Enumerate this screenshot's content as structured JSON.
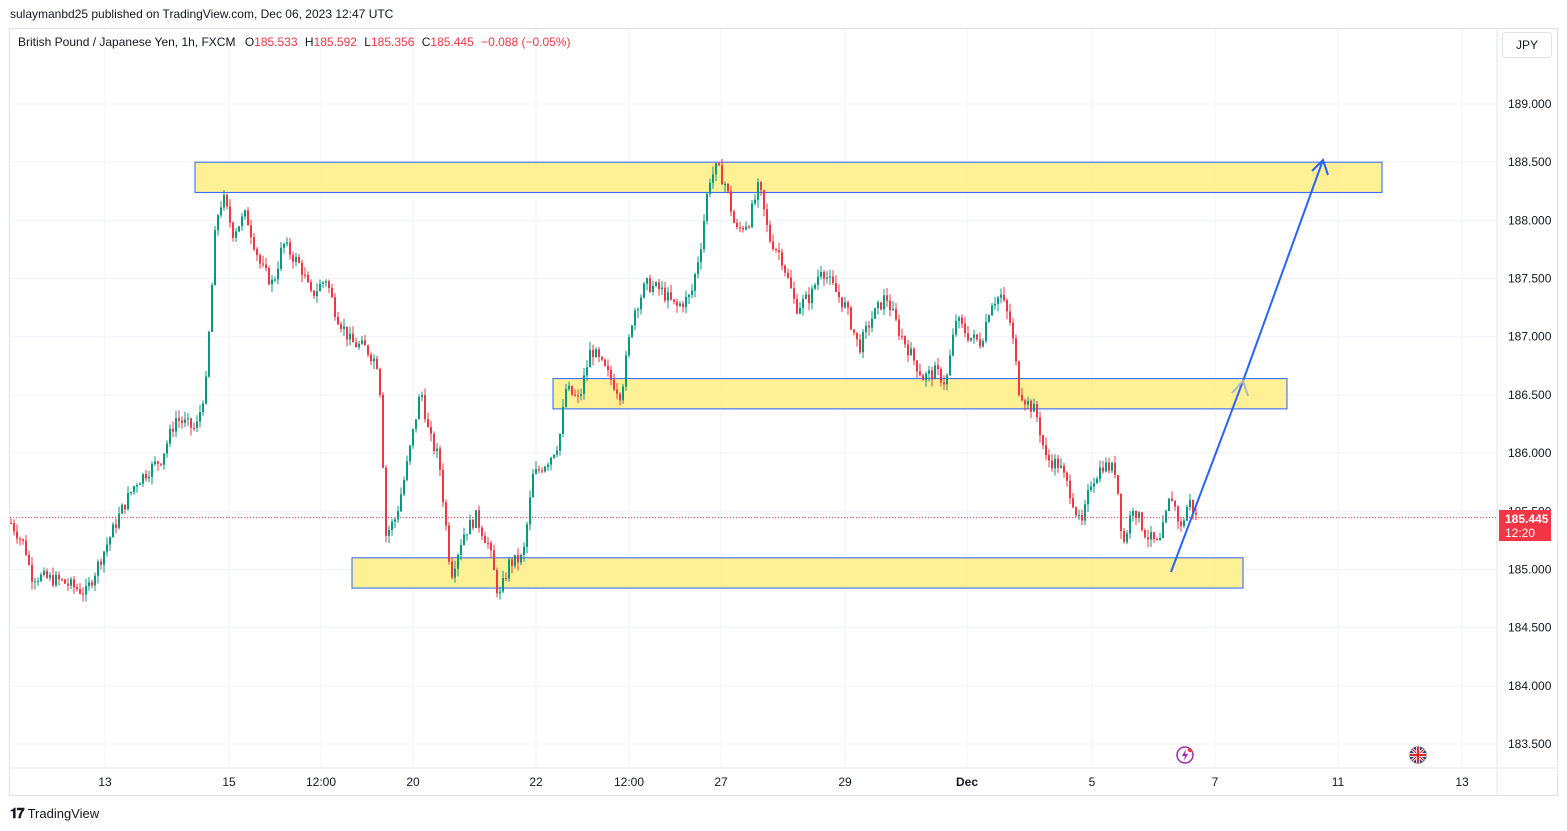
{
  "header": {
    "published_line": "sulaymanbd25 published on TradingView.com, Dec 06, 2023 12:47 UTC"
  },
  "legend": {
    "symbol": "British Pound / Japanese Yen, 1h, FXCM",
    "open_label": "O",
    "open": "185.533",
    "high_label": "H",
    "high": "185.592",
    "low_label": "L",
    "low": "185.356",
    "close_label": "C",
    "close": "185.445",
    "change": "−0.088 (−0.05%)"
  },
  "currency_button": "JPY",
  "last_price": {
    "price": "185.445",
    "countdown": "12:20"
  },
  "footer": {
    "brand": "TradingView"
  },
  "icons": [
    "lightning-icon",
    "uk-flag-icon",
    "tradingview-logo-icon"
  ],
  "colors": {
    "up": "#089981",
    "down": "#f23645",
    "zone_fill": "#fdee8a",
    "zone_border": "#2962ff",
    "arrow": "#2962ff",
    "grid": "#f0f3fa"
  },
  "chart_data": {
    "type": "candlestick",
    "ylim": [
      183.3,
      189.35
    ],
    "y_ticks": [
      "189.000",
      "188.500",
      "188.000",
      "187.500",
      "187.000",
      "186.500",
      "186.000",
      "185.500",
      "185.000",
      "184.500",
      "184.000",
      "183.500"
    ],
    "x_ticks": [
      "13",
      "15",
      "12:00",
      "20",
      "22",
      "12:00",
      "27",
      "29",
      "Dec",
      "5",
      "7",
      "11",
      "13"
    ],
    "close_path": [
      [
        0,
        185.4
      ],
      [
        14,
        185.2
      ],
      [
        20,
        184.95
      ],
      [
        50,
        184.9
      ],
      [
        75,
        184.8
      ],
      [
        95,
        185.2
      ],
      [
        110,
        185.5
      ],
      [
        125,
        185.75
      ],
      [
        150,
        185.95
      ],
      [
        165,
        186.3
      ],
      [
        185,
        186.2
      ],
      [
        195,
        186.6
      ],
      [
        200,
        187.3
      ],
      [
        205,
        188.0
      ],
      [
        212,
        188.2
      ],
      [
        222,
        187.9
      ],
      [
        235,
        188.05
      ],
      [
        250,
        187.6
      ],
      [
        262,
        187.45
      ],
      [
        272,
        187.8
      ],
      [
        290,
        187.6
      ],
      [
        300,
        187.35
      ],
      [
        315,
        187.5
      ],
      [
        325,
        187.2
      ],
      [
        340,
        186.95
      ],
      [
        355,
        186.9
      ],
      [
        368,
        186.75
      ],
      [
        375,
        185.3
      ],
      [
        385,
        185.45
      ],
      [
        395,
        185.85
      ],
      [
        410,
        186.55
      ],
      [
        418,
        186.15
      ],
      [
        428,
        185.95
      ],
      [
        440,
        184.95
      ],
      [
        452,
        185.3
      ],
      [
        465,
        185.45
      ],
      [
        478,
        185.2
      ],
      [
        488,
        184.75
      ],
      [
        498,
        185.05
      ],
      [
        512,
        185.1
      ],
      [
        522,
        185.8
      ],
      [
        538,
        185.95
      ],
      [
        548,
        186.1
      ],
      [
        555,
        186.55
      ],
      [
        568,
        186.45
      ],
      [
        580,
        186.9
      ],
      [
        595,
        186.7
      ],
      [
        610,
        186.5
      ],
      [
        622,
        187.2
      ],
      [
        635,
        187.45
      ],
      [
        650,
        187.4
      ],
      [
        665,
        187.25
      ],
      [
        680,
        187.35
      ],
      [
        690,
        187.8
      ],
      [
        698,
        188.35
      ],
      [
        706,
        188.45
      ],
      [
        715,
        188.3
      ],
      [
        725,
        187.9
      ],
      [
        738,
        188.0
      ],
      [
        748,
        188.3
      ],
      [
        758,
        187.85
      ],
      [
        770,
        187.7
      ],
      [
        785,
        187.25
      ],
      [
        800,
        187.35
      ],
      [
        810,
        187.6
      ],
      [
        820,
        187.45
      ],
      [
        835,
        187.25
      ],
      [
        848,
        186.9
      ],
      [
        860,
        187.15
      ],
      [
        875,
        187.35
      ],
      [
        888,
        187.05
      ],
      [
        900,
        186.85
      ],
      [
        912,
        186.65
      ],
      [
        925,
        186.7
      ],
      [
        935,
        186.6
      ],
      [
        945,
        187.15
      ],
      [
        958,
        187.0
      ],
      [
        970,
        186.95
      ],
      [
        980,
        187.3
      ],
      [
        990,
        187.35
      ],
      [
        1000,
        187.1
      ],
      [
        1008,
        186.55
      ],
      [
        1015,
        186.45
      ],
      [
        1025,
        186.35
      ],
      [
        1035,
        185.95
      ],
      [
        1048,
        185.9
      ],
      [
        1060,
        185.65
      ],
      [
        1070,
        185.35
      ],
      [
        1080,
        185.75
      ],
      [
        1092,
        185.9
      ],
      [
        1105,
        185.85
      ],
      [
        1112,
        185.2
      ],
      [
        1122,
        185.55
      ],
      [
        1135,
        185.3
      ],
      [
        1148,
        185.2
      ],
      [
        1160,
        185.65
      ],
      [
        1170,
        185.35
      ],
      [
        1178,
        185.6
      ],
      [
        1185,
        185.45
      ]
    ]
  }
}
